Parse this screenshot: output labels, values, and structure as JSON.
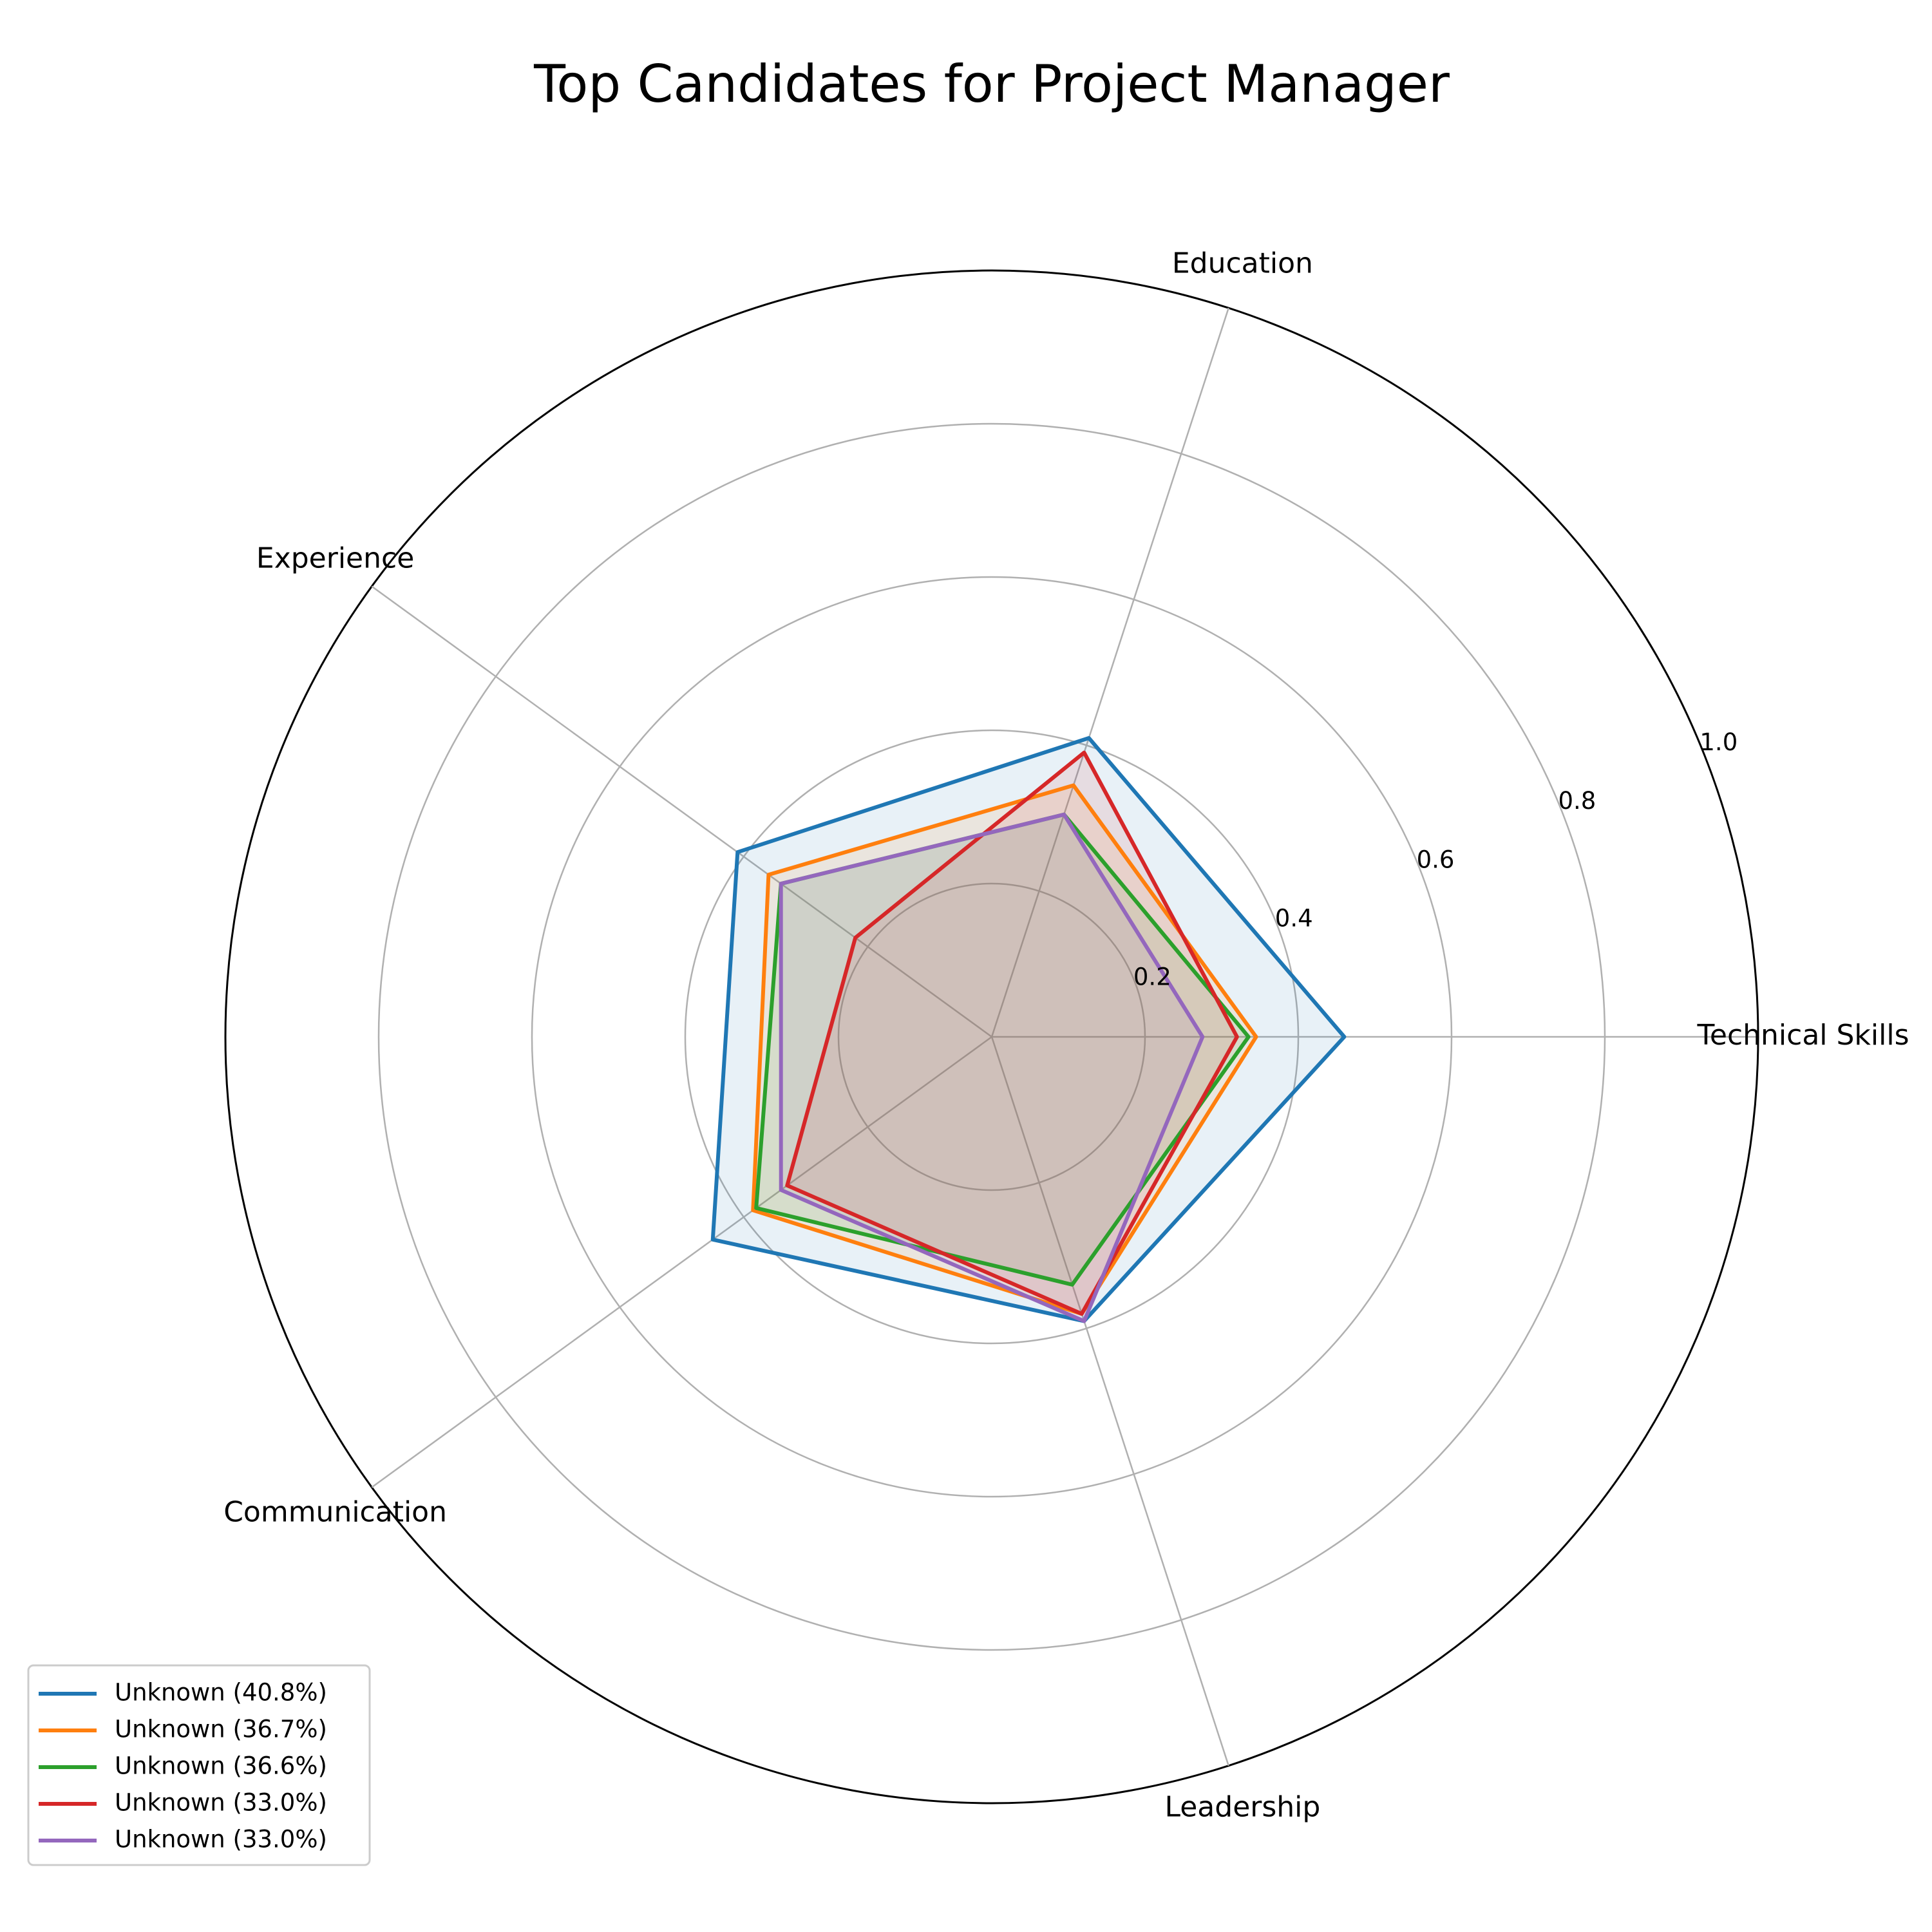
{
  "chart_data": {
    "type": "radar",
    "title": "Top Candidates for Project Manager",
    "categories": [
      "Technical Skills",
      "Education",
      "Experience",
      "Communication",
      "Leadership"
    ],
    "rlim": [
      0,
      1.0
    ],
    "rticks": [
      "0.2",
      "0.4",
      "0.6",
      "0.8",
      "1.0"
    ],
    "grid": true,
    "legend_position": "bottom-left",
    "series": [
      {
        "name": "Unknown (40.8%)",
        "values": [
          0.46,
          0.41,
          0.41,
          0.45,
          0.39
        ],
        "color": "#1f77b4"
      },
      {
        "name": "Unknown (36.7%)",
        "values": [
          0.345,
          0.345,
          0.36,
          0.385,
          0.38
        ],
        "color": "#ff7f0e"
      },
      {
        "name": "Unknown (36.6%)",
        "values": [
          0.335,
          0.305,
          0.34,
          0.38,
          0.34
        ],
        "color": "#2ca02c"
      },
      {
        "name": "Unknown (33.0%)",
        "values": [
          0.32,
          0.39,
          0.22,
          0.33,
          0.38
        ],
        "color": "#d62728"
      },
      {
        "name": "Unknown (33.0%)",
        "values": [
          0.275,
          0.305,
          0.34,
          0.34,
          0.39
        ],
        "color": "#9467bd"
      }
    ]
  }
}
